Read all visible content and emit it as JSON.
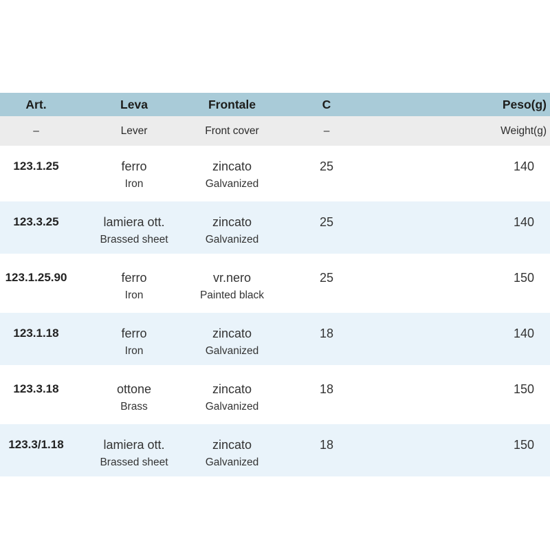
{
  "colors": {
    "header_bg": "#a9cbd8",
    "subheader_bg": "#ececec",
    "stripe_bg": "#e9f3fa"
  },
  "table": {
    "columns": [
      {
        "label": "Art.",
        "sub": "–"
      },
      {
        "label": "Leva",
        "sub": "Lever"
      },
      {
        "label": "Frontale",
        "sub": "Front cover"
      },
      {
        "label": "C",
        "sub": "–"
      },
      {
        "label": "Peso(g)",
        "sub": "Weight(g)"
      }
    ],
    "rows": [
      {
        "art": "123.1.25",
        "leva_it": "ferro",
        "leva_en": "Iron",
        "frontale_it": "zincato",
        "frontale_en": "Galvanized",
        "c": "25",
        "peso": "140",
        "shaded": false
      },
      {
        "art": "123.3.25",
        "leva_it": "lamiera ott.",
        "leva_en": "Brassed sheet",
        "frontale_it": "zincato",
        "frontale_en": "Galvanized",
        "c": "25",
        "peso": "140",
        "shaded": true
      },
      {
        "art": "123.1.25.90",
        "leva_it": "ferro",
        "leva_en": "Iron",
        "frontale_it": "vr.nero",
        "frontale_en": "Painted black",
        "c": "25",
        "peso": "150",
        "shaded": false
      },
      {
        "art": "123.1.18",
        "leva_it": "ferro",
        "leva_en": "Iron",
        "frontale_it": "zincato",
        "frontale_en": "Galvanized",
        "c": "18",
        "peso": "140",
        "shaded": true
      },
      {
        "art": "123.3.18",
        "leva_it": "ottone",
        "leva_en": "Brass",
        "frontale_it": "zincato",
        "frontale_en": "Galvanized",
        "c": "18",
        "peso": "150",
        "shaded": false
      },
      {
        "art": "123.3/1.18",
        "leva_it": "lamiera ott.",
        "leva_en": "Brassed sheet",
        "frontale_it": "zincato",
        "frontale_en": "Galvanized",
        "c": "18",
        "peso": "150",
        "shaded": true
      }
    ]
  }
}
